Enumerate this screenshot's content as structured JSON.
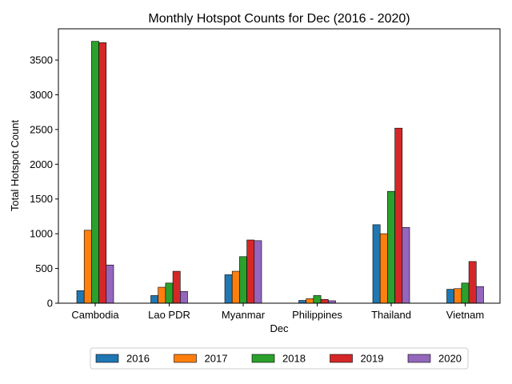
{
  "chart_data": {
    "type": "bar",
    "title": "Monthly Hotspot Counts for Dec (2016 - 2020)",
    "xlabel": "Dec",
    "ylabel": "Total Hotspot Count",
    "ylim": [
      0,
      3950
    ],
    "yticks": [
      0,
      500,
      1000,
      1500,
      2000,
      2500,
      3000,
      3500
    ],
    "grid": false,
    "legend_placement": "bottom-center",
    "categories": [
      "Cambodia",
      "Lao PDR",
      "Myanmar",
      "Philippines",
      "Thailand",
      "Vietnam"
    ],
    "series": [
      {
        "name": "2016",
        "color": "#1f77b4",
        "values": [
          180,
          110,
          410,
          40,
          1130,
          200
        ]
      },
      {
        "name": "2017",
        "color": "#ff7f0e",
        "values": [
          1050,
          230,
          460,
          65,
          1000,
          210
        ]
      },
      {
        "name": "2018",
        "color": "#2ca02c",
        "values": [
          3770,
          290,
          670,
          110,
          1610,
          290
        ]
      },
      {
        "name": "2019",
        "color": "#d62728",
        "values": [
          3750,
          460,
          910,
          55,
          2520,
          600
        ]
      },
      {
        "name": "2020",
        "color": "#9467bd",
        "values": [
          550,
          170,
          900,
          35,
          1090,
          240
        ]
      }
    ]
  }
}
